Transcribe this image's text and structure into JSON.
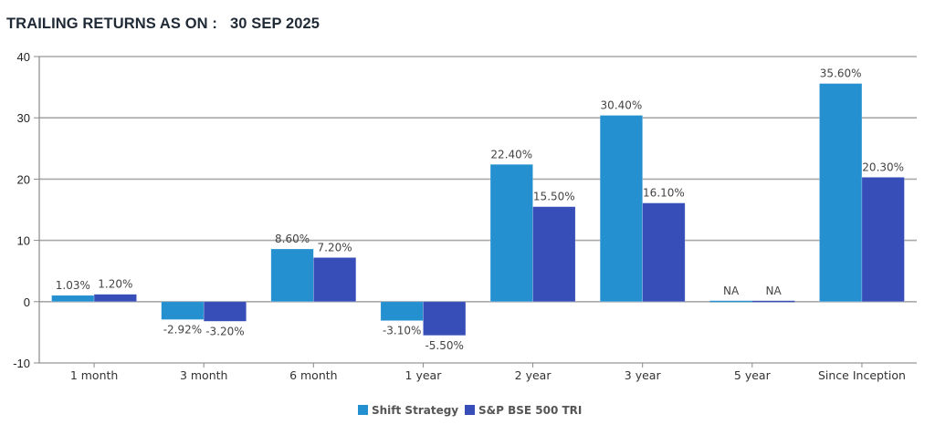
{
  "header": {
    "title": "TRAILING RETURNS AS ON :   30 SEP 2025"
  },
  "chart_data": {
    "type": "bar",
    "title": "TRAILING RETURNS AS ON :   30 SEP 2025",
    "xlabel": "",
    "ylabel": "",
    "ylim": [
      -10,
      40
    ],
    "yticks": [
      40,
      30,
      20,
      10,
      0,
      -10
    ],
    "grid": true,
    "legend_position": "bottom-center",
    "categories": [
      "1 month",
      "3 month",
      "6 month",
      "1 year",
      "2 year",
      "3 year",
      "5 year",
      "Since Inception"
    ],
    "series": [
      {
        "name": "Shift Strategy",
        "color": "#2490d0",
        "values": [
          1.03,
          -2.92,
          8.6,
          -3.1,
          22.4,
          30.4,
          null,
          35.6
        ],
        "labels": [
          "1.03%",
          "-2.92%",
          "8.60%",
          "-3.10%",
          "22.40%",
          "30.40%",
          "NA",
          "35.60%"
        ]
      },
      {
        "name": "S&P BSE 500 TRI",
        "color": "#374eb9",
        "values": [
          1.2,
          -3.2,
          7.2,
          -5.5,
          15.5,
          16.1,
          null,
          20.3
        ],
        "labels": [
          "1.20%",
          "-3.20%",
          "7.20%",
          "-5.50%",
          "15.50%",
          "16.10%",
          "NA",
          "20.30%"
        ]
      }
    ]
  }
}
